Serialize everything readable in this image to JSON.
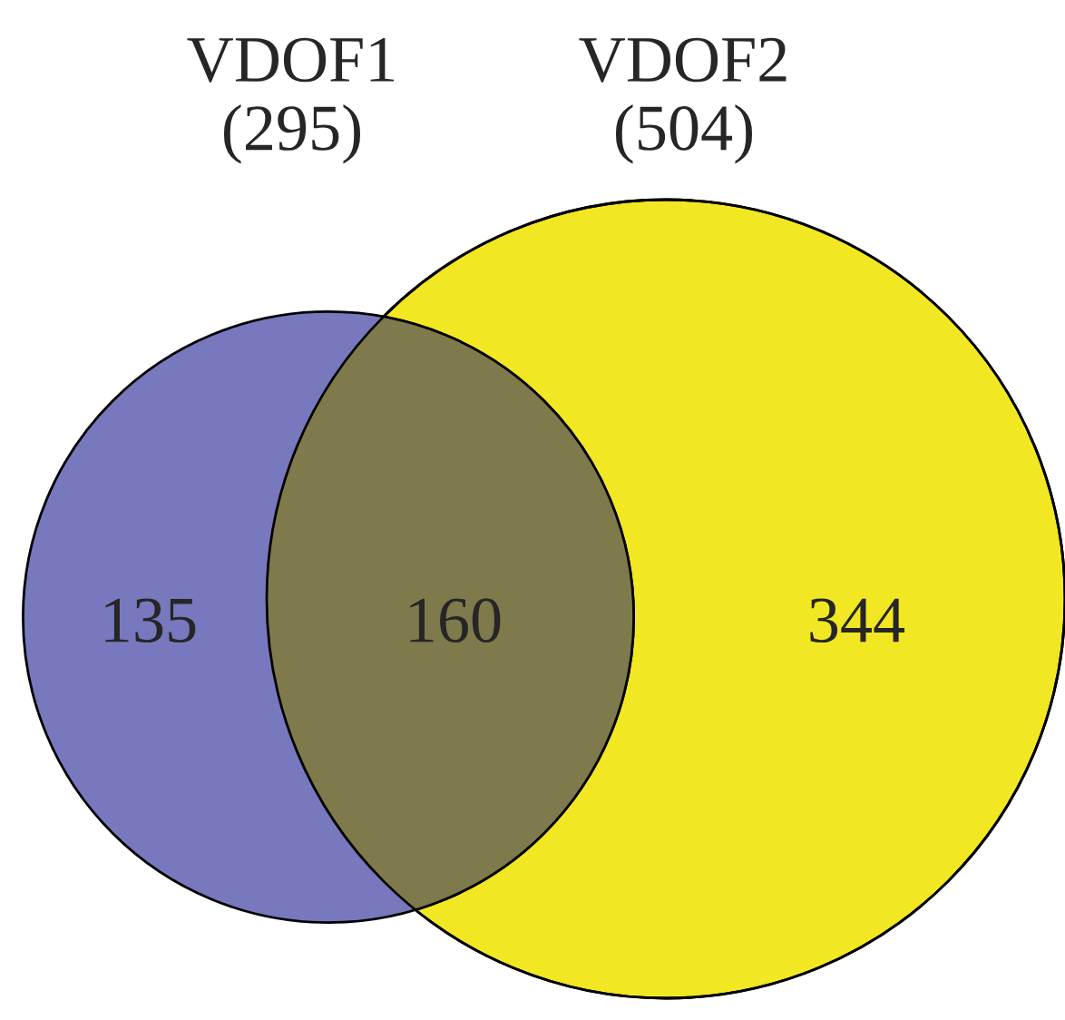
{
  "chart_data": {
    "type": "other",
    "categories": [
      null,
      null,
      null
    ],
    "values": [
      135,
      160,
      344
    ],
    "colors": [
      "#7878be",
      "#7f7a4c",
      "#f2e723"
    ],
    "data_labels": true,
    "annotations": [
      "VDOF1\n(295)",
      "VDOF2\n(504)"
    ]
  }
}
